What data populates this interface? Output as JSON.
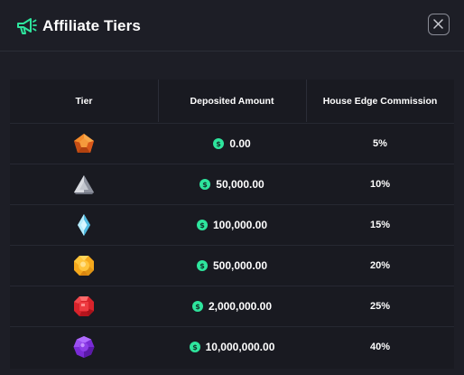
{
  "header": {
    "title": "Affiliate Tiers",
    "icon": "megaphone-icon",
    "close_icon": "close-icon",
    "accent_color": "#2ee59d"
  },
  "table": {
    "columns": [
      "Tier",
      "Deposited Amount",
      "House Edge Commission"
    ],
    "rows": [
      {
        "tier_icon": "bronze-gem-icon",
        "amount": "0.00",
        "commission": "5%"
      },
      {
        "tier_icon": "silver-gem-icon",
        "amount": "50,000.00",
        "commission": "10%"
      },
      {
        "tier_icon": "diamond-gem-icon",
        "amount": "100,000.00",
        "commission": "15%"
      },
      {
        "tier_icon": "gold-gem-icon",
        "amount": "500,000.00",
        "commission": "20%"
      },
      {
        "tier_icon": "ruby-gem-icon",
        "amount": "2,000,000.00",
        "commission": "25%"
      },
      {
        "tier_icon": "amethyst-gem-icon",
        "amount": "10,000,000.00",
        "commission": "40%"
      }
    ],
    "currency_icon": "dollar-coin-icon"
  }
}
